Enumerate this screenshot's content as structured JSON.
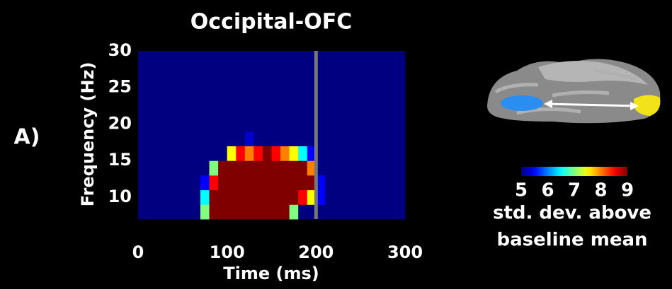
{
  "chart_data": {
    "type": "heatmap",
    "panel_label": "A)",
    "title": "Occipital-OFC",
    "xlabel": "Time (ms)",
    "ylabel": "Frequency (Hz)",
    "xlim": [
      0,
      300
    ],
    "xticks": [
      0,
      100,
      200,
      300
    ],
    "ylim": [
      7,
      30
    ],
    "yticks": [
      10,
      15,
      20,
      25,
      30
    ],
    "x_edges": [
      0,
      10,
      20,
      30,
      40,
      50,
      60,
      70,
      80,
      90,
      100,
      110,
      120,
      130,
      140,
      150,
      160,
      170,
      180,
      190,
      200,
      210,
      220,
      230,
      240,
      250,
      260,
      270,
      280,
      290,
      300
    ],
    "y_edges": [
      7,
      9,
      11,
      13,
      15,
      17,
      19,
      30
    ],
    "z": [
      [
        4,
        4,
        4,
        4,
        4,
        4,
        4,
        7,
        9,
        9,
        9,
        9,
        9,
        9,
        9,
        9,
        9,
        7,
        5,
        4,
        4,
        4,
        4,
        4,
        4,
        4,
        4,
        4,
        4,
        4
      ],
      [
        4,
        4,
        4,
        4,
        4,
        4,
        4,
        6.5,
        9,
        9,
        9,
        9,
        9,
        9,
        9,
        9,
        9,
        9,
        8.5,
        7.5,
        5.5,
        4,
        4,
        4,
        4,
        4,
        4,
        4,
        4,
        4
      ],
      [
        4,
        4,
        4,
        4,
        4,
        4,
        4,
        5.5,
        8.5,
        9,
        9,
        9,
        9,
        9,
        9,
        9,
        9,
        9,
        9,
        9,
        5.5,
        4,
        4,
        4,
        4,
        4,
        4,
        4,
        4,
        4
      ],
      [
        4,
        4,
        4,
        4,
        4,
        4,
        4,
        4,
        7,
        9,
        9,
        9,
        9,
        9,
        9,
        9,
        9,
        9,
        9,
        8,
        4,
        4,
        4,
        4,
        4,
        4,
        4,
        4,
        4,
        4
      ],
      [
        4,
        4,
        4,
        4,
        4,
        4,
        4,
        4,
        4,
        4,
        7.5,
        8.5,
        8,
        8.5,
        9,
        8.5,
        8,
        7.5,
        6.5,
        5.5,
        4,
        4,
        4,
        4,
        4,
        4,
        4,
        4,
        4,
        4
      ],
      [
        4,
        4,
        4,
        4,
        4,
        4,
        4,
        4,
        4,
        4,
        4,
        5,
        5.3,
        4,
        4,
        4,
        4,
        4,
        4,
        4,
        4,
        4,
        4,
        4,
        4,
        4,
        4,
        4,
        4,
        4
      ],
      [
        4,
        4,
        4,
        4,
        4,
        4,
        4,
        4,
        4,
        4,
        4,
        4,
        4,
        4,
        4,
        4,
        4,
        4,
        4,
        4,
        4,
        4,
        4,
        4,
        4,
        4,
        4,
        4,
        4,
        4
      ]
    ],
    "vline": 200,
    "vline_color": "#777777",
    "colormap": "jet",
    "colorbar_lim": [
      5,
      9
    ],
    "colorbar_ticks": [
      5,
      6,
      7,
      8,
      9
    ],
    "colorbar_label": [
      "std. dev. above",
      "baseline mean"
    ]
  }
}
